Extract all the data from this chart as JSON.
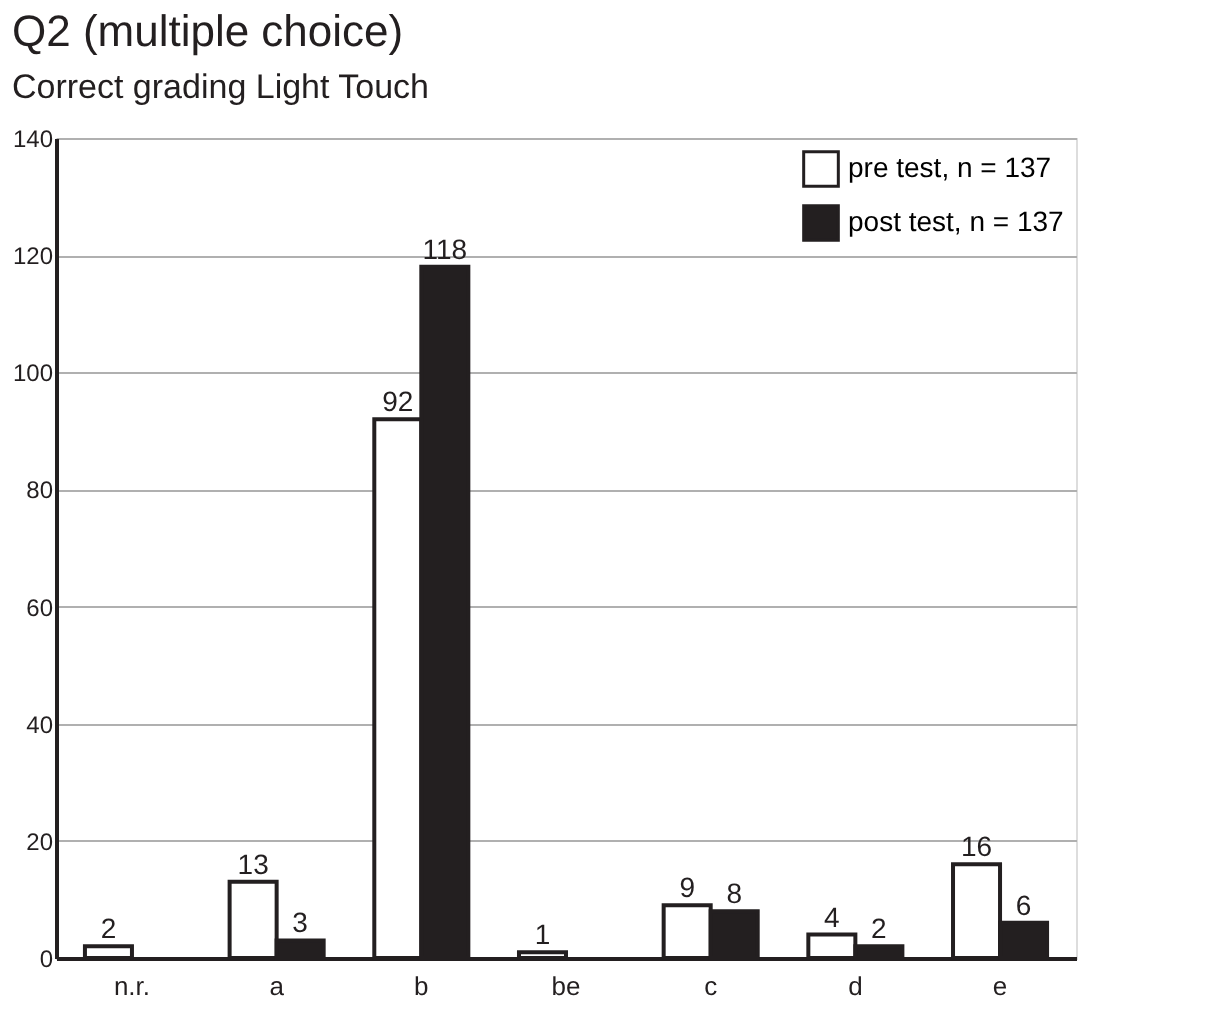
{
  "chart_data": {
    "type": "bar",
    "title": "Q2 (multiple choice)",
    "subtitle": "Correct grading Light Touch",
    "categories": [
      "n.r.",
      "a",
      "b",
      "be",
      "c",
      "d",
      "e"
    ],
    "series": [
      {
        "name": "pre test, n = 137",
        "color": "#ffffff",
        "values": [
          2,
          13,
          92,
          1,
          9,
          4,
          16
        ],
        "value_labels": [
          "2",
          "13",
          "92",
          "1",
          "9",
          "4",
          "16"
        ]
      },
      {
        "name": "post test, n = 137",
        "color": "#231f20",
        "values": [
          null,
          3,
          118,
          null,
          8,
          2,
          6
        ],
        "value_labels": [
          null,
          "3",
          "118",
          null,
          "8",
          "2",
          "6"
        ]
      }
    ],
    "ylim": [
      0,
      140
    ],
    "yticks": [
      0,
      20,
      40,
      60,
      80,
      100,
      120,
      140
    ],
    "grid": "y",
    "legend": "top right"
  }
}
